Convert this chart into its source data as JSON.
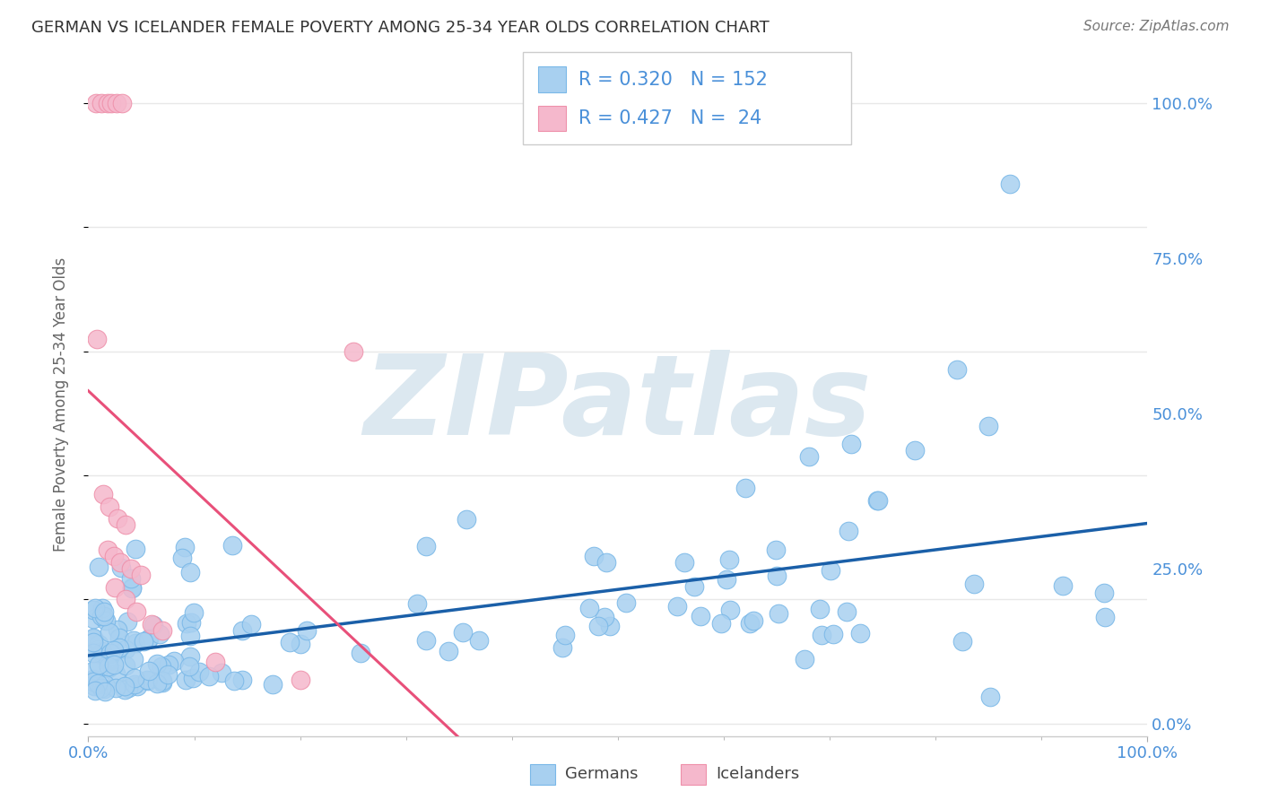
{
  "title": "GERMAN VS ICELANDER FEMALE POVERTY AMONG 25-34 YEAR OLDS CORRELATION CHART",
  "source": "Source: ZipAtlas.com",
  "ylabel": "Female Poverty Among 25-34 Year Olds",
  "german_R": 0.32,
  "german_N": 152,
  "icelander_R": 0.427,
  "icelander_N": 24,
  "german_color": "#a8d0f0",
  "german_edge_color": "#7ab8e8",
  "icelander_color": "#f5b8cc",
  "icelander_edge_color": "#ee90aa",
  "trendline_german_color": "#1a5fa8",
  "trendline_icelander_color": "#e8507a",
  "watermark": "ZIPatlas",
  "watermark_color": "#dce8f0",
  "background_color": "#ffffff",
  "grid_color": "#e8e8e8",
  "title_color": "#333333",
  "source_color": "#777777",
  "tick_color": "#4a90d9",
  "ylabel_color": "#666666",
  "legend_border_color": "#cccccc",
  "xlim": [
    0.0,
    1.0
  ],
  "ylim": [
    -0.02,
    1.05
  ],
  "ytick_values": [
    0.0,
    0.25,
    0.5,
    0.75,
    1.0
  ],
  "ytick_labels": [
    "0.0%",
    "25.0%",
    "50.0%",
    "75.0%",
    "100.0%"
  ],
  "xtick_values": [
    0.0,
    1.0
  ],
  "xtick_labels": [
    "0.0%",
    "100.0%"
  ]
}
